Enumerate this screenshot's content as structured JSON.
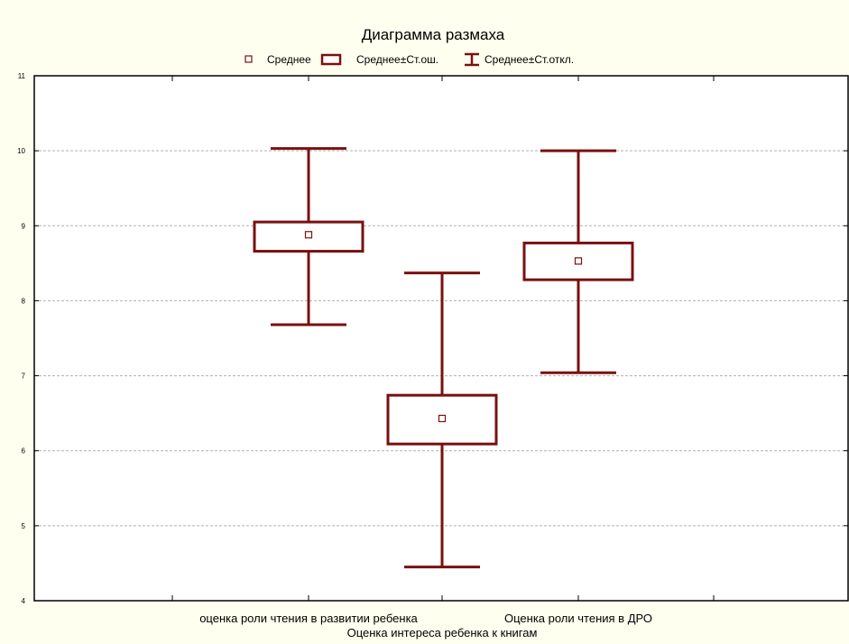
{
  "chart_data": {
    "type": "box",
    "title": "Диаграмма размаха",
    "legend": {
      "placement": "top-center",
      "items": [
        {
          "symbol": "mean-marker",
          "label": "Среднее"
        },
        {
          "symbol": "box",
          "label": "Среднее±Ст.ош."
        },
        {
          "symbol": "whisker",
          "label": "Среднее±Ст.откл."
        }
      ]
    },
    "xlabel": "",
    "ylabel": "",
    "ylim": [
      4,
      11
    ],
    "yticks": [
      4,
      5,
      6,
      7,
      8,
      9,
      10,
      11
    ],
    "grid": "horizontal-dashed",
    "categories": [
      "оценка роли чтения в развитии ребенка",
      "Оценка интереса ребенка к книгам",
      "Оценка роли чтения в ДРО"
    ],
    "series": [
      {
        "mean": 8.88,
        "se_low": 8.66,
        "se_high": 9.05,
        "sd_low": 7.68,
        "sd_high": 10.03
      },
      {
        "mean": 6.43,
        "se_low": 6.09,
        "se_high": 6.74,
        "sd_low": 4.45,
        "sd_high": 8.37
      },
      {
        "mean": 8.53,
        "se_low": 8.28,
        "se_high": 8.77,
        "sd_low": 7.04,
        "sd_high": 10.0
      }
    ],
    "colors": {
      "box": "#7a1010",
      "axis": "#000000",
      "grid": "#b0b0b0",
      "plot_bg": "#ffffff",
      "page_bg": "#fffff0"
    }
  }
}
